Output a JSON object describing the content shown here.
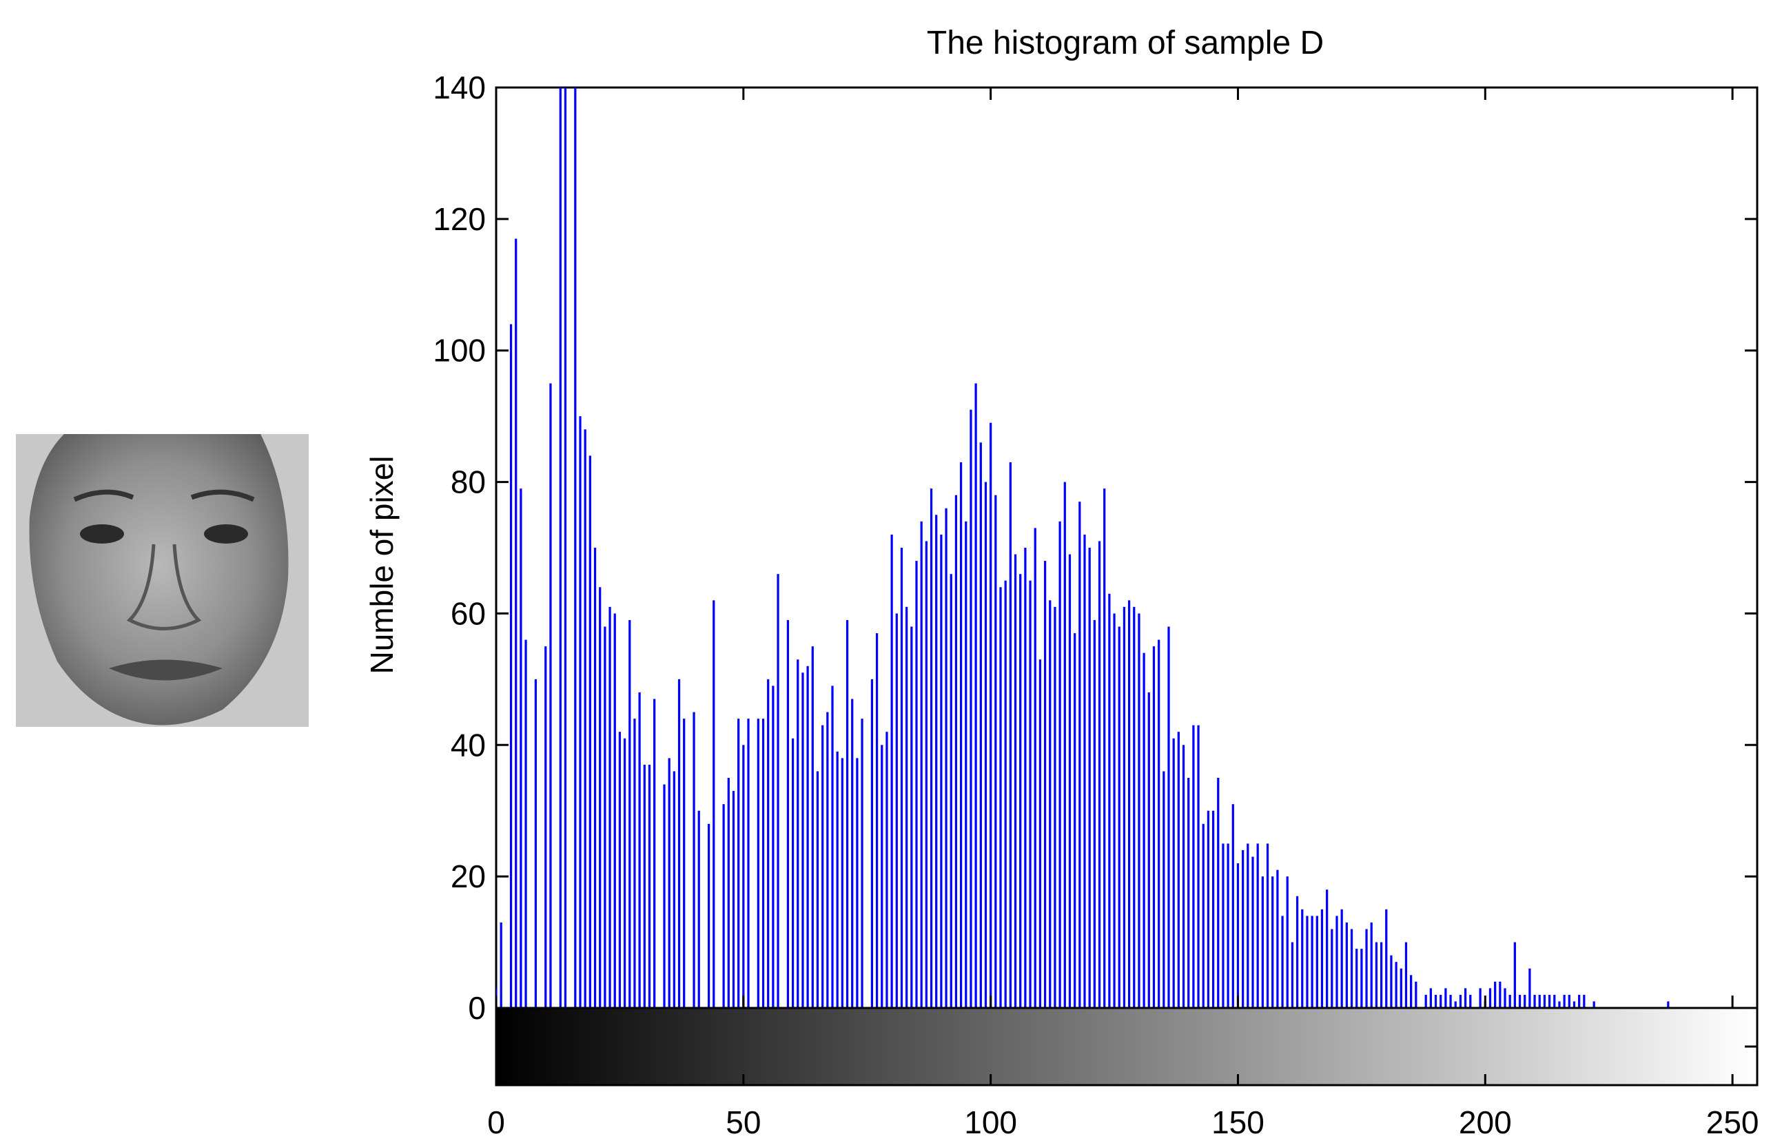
{
  "chart_data": {
    "type": "bar",
    "title": "The histogram of sample D",
    "xlabel": "",
    "ylabel": "Numble of pixel",
    "xlim": [
      0,
      255
    ],
    "ylim": [
      0,
      140
    ],
    "xticks": [
      0,
      50,
      100,
      150,
      200,
      250
    ],
    "yticks": [
      0,
      20,
      40,
      60,
      80,
      100,
      120,
      140
    ],
    "grid": false,
    "bar_color": "#0000ff",
    "colorbar": "grayscale 0-255",
    "values": [
      3,
      13,
      0,
      104,
      117,
      79,
      56,
      0,
      50,
      0,
      55,
      95,
      0,
      140,
      140,
      0,
      140,
      90,
      88,
      84,
      70,
      64,
      58,
      61,
      60,
      42,
      41,
      59,
      44,
      48,
      37,
      37,
      47,
      0,
      34,
      38,
      36,
      50,
      44,
      0,
      45,
      30,
      0,
      28,
      62,
      0,
      31,
      35,
      33,
      44,
      40,
      44,
      0,
      44,
      44,
      50,
      49,
      66,
      0,
      59,
      41,
      53,
      51,
      52,
      55,
      36,
      43,
      45,
      49,
      39,
      38,
      59,
      47,
      38,
      44,
      0,
      50,
      57,
      40,
      42,
      72,
      60,
      70,
      61,
      58,
      68,
      74,
      71,
      79,
      75,
      72,
      76,
      66,
      78,
      83,
      74,
      91,
      95,
      86,
      80,
      89,
      78,
      64,
      65,
      83,
      69,
      66,
      70,
      65,
      73,
      53,
      68,
      62,
      61,
      74,
      80,
      69,
      57,
      77,
      72,
      70,
      59,
      71,
      79,
      63,
      60,
      58,
      61,
      62,
      61,
      60,
      54,
      48,
      55,
      56,
      36,
      58,
      41,
      42,
      40,
      35,
      43,
      43,
      28,
      30,
      30,
      35,
      25,
      25,
      31,
      22,
      24,
      25,
      23,
      25,
      20,
      25,
      20,
      21,
      14,
      20,
      10,
      17,
      15,
      14,
      14,
      14,
      15,
      18,
      12,
      14,
      15,
      13,
      12,
      9,
      9,
      12,
      13,
      10,
      10,
      15,
      8,
      7,
      6,
      10,
      5,
      4,
      0,
      2,
      3,
      2,
      2,
      3,
      2,
      1,
      2,
      3,
      2,
      0,
      3,
      1,
      3,
      4,
      4,
      3,
      2,
      10,
      2,
      2,
      6,
      2,
      2,
      2,
      2,
      2,
      1,
      2,
      2,
      1,
      2,
      2,
      0,
      1,
      0,
      0,
      0,
      0,
      0,
      0,
      0,
      0,
      0,
      0,
      0,
      0,
      0,
      0,
      1,
      0,
      0,
      0,
      0,
      0,
      0,
      0,
      0,
      0,
      0,
      0,
      0,
      0,
      0,
      0
    ]
  }
}
